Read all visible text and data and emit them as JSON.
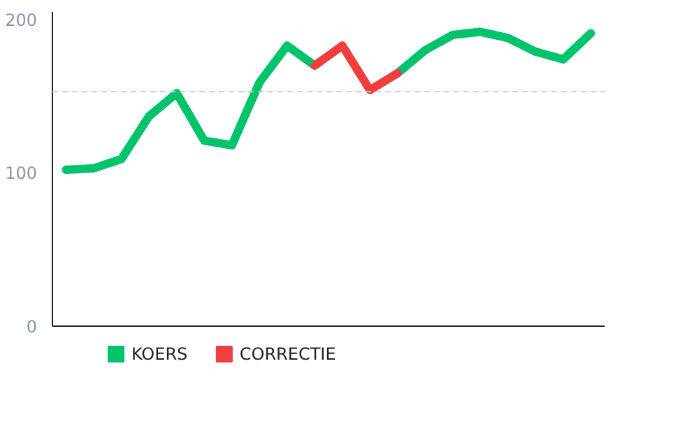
{
  "chart_data": {
    "type": "line",
    "categories": [
      null,
      null,
      null,
      null,
      null,
      null,
      null,
      null,
      null,
      null,
      null,
      null,
      null,
      null,
      null,
      null,
      null,
      null,
      null,
      null
    ],
    "series": [
      {
        "name": "KOERS",
        "color": "#00c36b",
        "values": [
          102,
          103,
          109,
          137,
          152,
          121,
          118,
          159,
          183,
          170,
          null,
          null,
          165,
          180,
          190,
          192,
          188,
          179,
          174,
          191
        ]
      },
      {
        "name": "CORRECTIE",
        "color": "#ef3e3e",
        "values": [
          null,
          null,
          null,
          null,
          null,
          null,
          null,
          null,
          null,
          170,
          183,
          154,
          165,
          null,
          null,
          null,
          null,
          null,
          null,
          null
        ]
      }
    ],
    "ylim": [
      0,
      205
    ],
    "yticks": [
      0,
      100,
      200
    ],
    "grid": false,
    "legend": "bottom left",
    "marker": "none",
    "line_style": "solid",
    "ref_lines": [
      {
        "axis": "y",
        "value": 153,
        "color": "#cccccc",
        "line_style": "dashed"
      }
    ]
  }
}
